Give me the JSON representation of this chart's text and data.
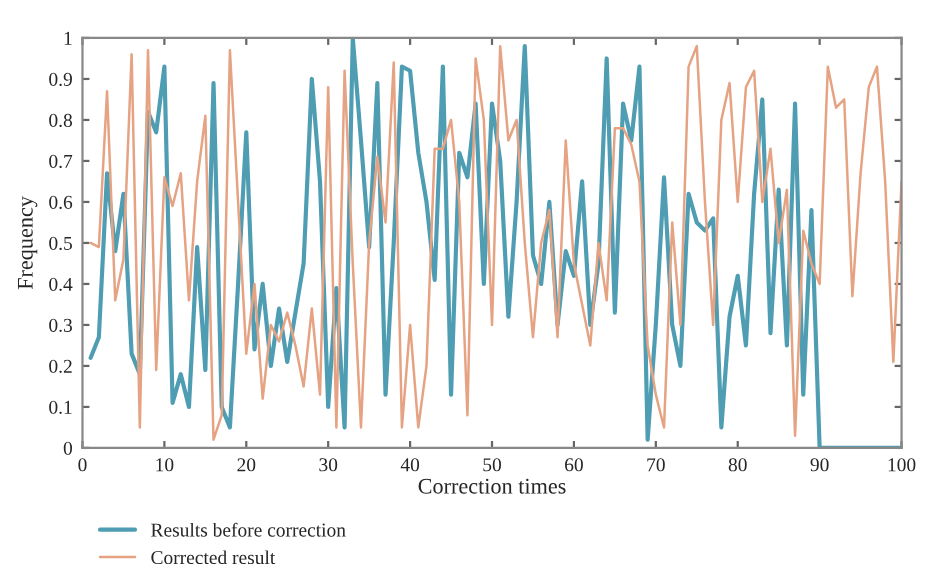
{
  "chart_data": {
    "type": "line",
    "xlabel": "Correction times",
    "ylabel": "Frequency",
    "x": [
      1,
      2,
      3,
      4,
      5,
      6,
      7,
      8,
      9,
      10,
      11,
      12,
      13,
      14,
      15,
      16,
      17,
      18,
      19,
      20,
      21,
      22,
      23,
      24,
      25,
      26,
      27,
      28,
      29,
      30,
      31,
      32,
      33,
      34,
      35,
      36,
      37,
      38,
      39,
      40,
      41,
      42,
      43,
      44,
      45,
      46,
      47,
      48,
      49,
      50,
      51,
      52,
      53,
      54,
      55,
      56,
      57,
      58,
      59,
      60,
      61,
      62,
      63,
      64,
      65,
      66,
      67,
      68,
      69,
      70,
      71,
      72,
      73,
      74,
      75,
      76,
      77,
      78,
      79,
      80,
      81,
      82,
      83,
      84,
      85,
      86,
      87,
      88,
      89,
      90,
      91,
      92,
      93,
      94,
      95,
      96,
      97,
      98,
      99,
      100
    ],
    "series": [
      {
        "name": "Results before correction",
        "color": "#4f9db3",
        "values": [
          0.22,
          0.27,
          0.67,
          0.48,
          0.62,
          0.23,
          0.18,
          0.82,
          0.77,
          0.93,
          0.11,
          0.18,
          0.1,
          0.49,
          0.19,
          0.89,
          0.1,
          0.05,
          0.4,
          0.77,
          0.24,
          0.4,
          0.2,
          0.34,
          0.21,
          0.33,
          0.45,
          0.9,
          0.65,
          0.1,
          0.39,
          0.05,
          1.0,
          0.75,
          0.49,
          0.89,
          0.13,
          0.5,
          0.93,
          0.92,
          0.72,
          0.6,
          0.41,
          0.93,
          0.13,
          0.72,
          0.66,
          0.84,
          0.4,
          0.84,
          0.7,
          0.32,
          0.6,
          0.98,
          0.47,
          0.4,
          0.6,
          0.3,
          0.48,
          0.42,
          0.65,
          0.3,
          0.45,
          0.95,
          0.33,
          0.84,
          0.75,
          0.93,
          0.02,
          0.3,
          0.66,
          0.3,
          0.2,
          0.62,
          0.55,
          0.53,
          0.56,
          0.05,
          0.32,
          0.42,
          0.25,
          0.62,
          0.85,
          0.28,
          0.63,
          0.25,
          0.84,
          0.13,
          0.58,
          0.0,
          0,
          0,
          0,
          0,
          0,
          0,
          0,
          0,
          0,
          0
        ]
      },
      {
        "name": "Corrected result",
        "color": "#e5a383",
        "values": [
          0.5,
          0.49,
          0.87,
          0.36,
          0.46,
          0.96,
          0.05,
          0.97,
          0.19,
          0.66,
          0.59,
          0.67,
          0.36,
          0.65,
          0.81,
          0.02,
          0.08,
          0.97,
          0.6,
          0.23,
          0.4,
          0.12,
          0.3,
          0.26,
          0.33,
          0.25,
          0.15,
          0.34,
          0.13,
          0.88,
          0.05,
          0.92,
          0.45,
          0.05,
          0.5,
          0.71,
          0.55,
          0.94,
          0.05,
          0.3,
          0.05,
          0.2,
          0.73,
          0.73,
          0.8,
          0.6,
          0.08,
          0.95,
          0.8,
          0.3,
          0.98,
          0.75,
          0.8,
          0.5,
          0.27,
          0.5,
          0.58,
          0.27,
          0.75,
          0.45,
          0.35,
          0.25,
          0.5,
          0.36,
          0.78,
          0.78,
          0.74,
          0.65,
          0.25,
          0.13,
          0.05,
          0.55,
          0.3,
          0.93,
          0.98,
          0.6,
          0.3,
          0.8,
          0.89,
          0.6,
          0.88,
          0.92,
          0.6,
          0.73,
          0.5,
          0.63,
          0.03,
          0.53,
          0.45,
          0.4,
          0.93,
          0.83,
          0.85,
          0.37,
          0.67,
          0.88,
          0.93,
          0.65,
          0.21,
          0.65
        ]
      }
    ],
    "xlim": [
      0,
      100
    ],
    "xticks": [
      0,
      10,
      20,
      30,
      40,
      50,
      60,
      70,
      80,
      90,
      100
    ],
    "ylim": [
      0,
      1
    ],
    "yticks": [
      0,
      0.1,
      0.2,
      0.3,
      0.4,
      0.5,
      0.6,
      0.7,
      0.8,
      0.9,
      1
    ],
    "grid": false,
    "legend": "bottom left",
    "marker": "none",
    "line_style": "solid"
  }
}
